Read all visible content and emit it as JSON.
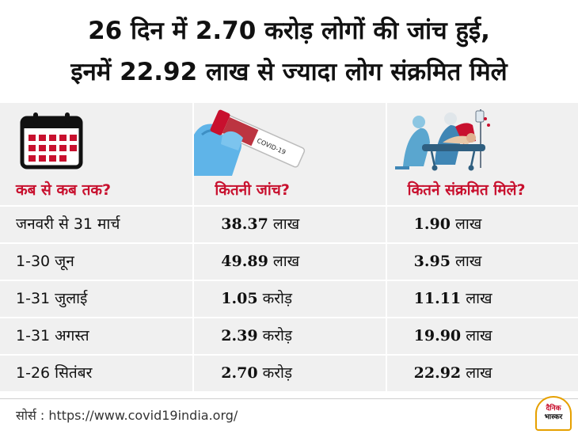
{
  "title": {
    "line1": "26 दिन में 2.70 करोड़ लोगों की जांच हुई,",
    "line2": "इनमें 22.92 लाख से ज्यादा लोग संक्रमित मिले"
  },
  "icons": {
    "col1": "calendar-icon",
    "col2": "covid-test-tube-image",
    "col3": "patient-stretcher-illustration",
    "tube_label": "COVID-19"
  },
  "columns": {
    "period": "कब से कब तक?",
    "tests": "कितनी जांच?",
    "infected": "कितने संक्रमित मिले?"
  },
  "rows": [
    {
      "period": "जनवरी से 31 मार्च",
      "tests_num": "38.37",
      "tests_unit": "लाख",
      "infected_num": "1.90",
      "infected_unit": "लाख"
    },
    {
      "period": "1-30 जून",
      "tests_num": "49.89",
      "tests_unit": "लाख",
      "infected_num": "3.95",
      "infected_unit": "लाख"
    },
    {
      "period": "1-31 जुलाई",
      "tests_num": "1.05",
      "tests_unit": "करोड़",
      "infected_num": "11.11",
      "infected_unit": "लाख"
    },
    {
      "period": "1-31 अगस्त",
      "tests_num": "2.39",
      "tests_unit": "करोड़",
      "infected_num": "19.90",
      "infected_unit": "लाख"
    },
    {
      "period": "1-26 सितंबर",
      "tests_num": "2.70",
      "tests_unit": "करोड़",
      "infected_num": "22.92",
      "infected_unit": "लाख"
    }
  ],
  "source": "सोर्स : https://www.covid19india.org/",
  "logo": {
    "line1": "दैनिक",
    "line2": "भास्कर"
  },
  "colors": {
    "accent": "#c8102e",
    "cell_bg": "#f0f0f0",
    "text": "#111111"
  }
}
